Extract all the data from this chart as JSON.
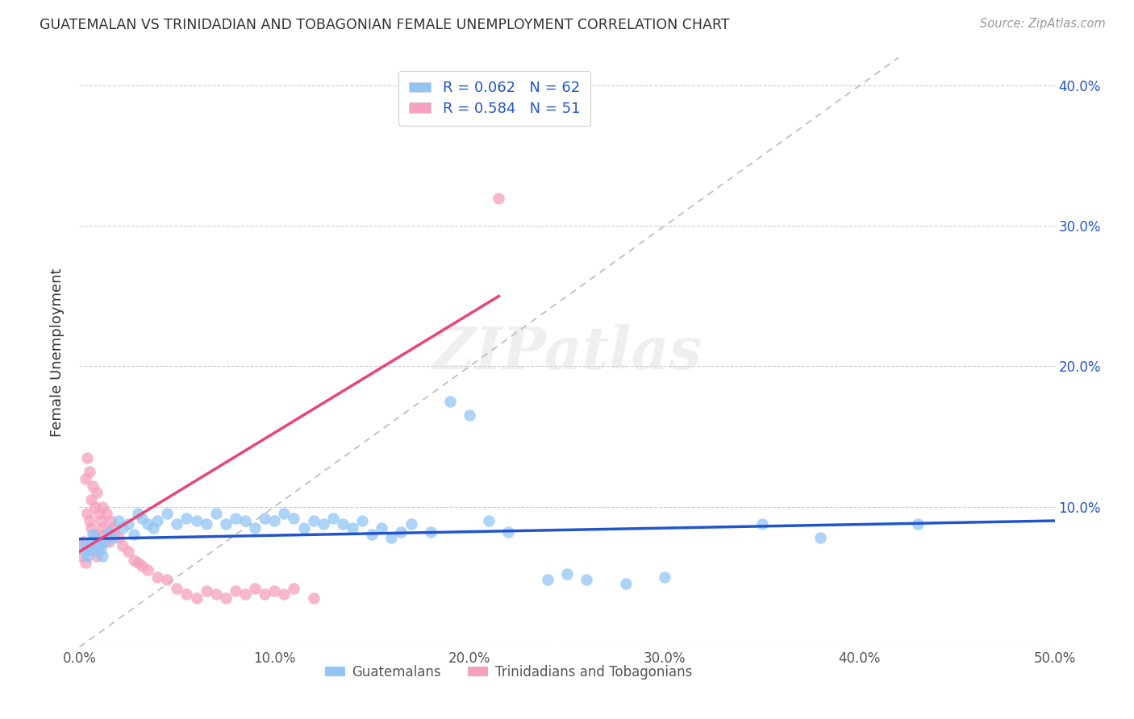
{
  "title": "GUATEMALAN VS TRINIDADIAN AND TOBAGONIAN FEMALE UNEMPLOYMENT CORRELATION CHART",
  "source": "Source: ZipAtlas.com",
  "ylabel": "Female Unemployment",
  "xlim": [
    0.0,
    0.5
  ],
  "ylim": [
    0.0,
    0.42
  ],
  "xticks": [
    0.0,
    0.1,
    0.2,
    0.3,
    0.4,
    0.5
  ],
  "yticks": [
    0.0,
    0.1,
    0.2,
    0.3,
    0.4
  ],
  "xtick_labels": [
    "0.0%",
    "10.0%",
    "20.0%",
    "30.0%",
    "40.0%",
    "50.0%"
  ],
  "ytick_labels_right": [
    "",
    "10.0%",
    "20.0%",
    "30.0%",
    "40.0%"
  ],
  "legend_guatemalans": "Guatemalans",
  "legend_trinidadians": "Trinidadians and Tobagonians",
  "r_guatemalan": "R = 0.062",
  "n_guatemalan": "N = 62",
  "r_trinidadian": "R = 0.584",
  "n_trinidadian": "N = 51",
  "blue_color": "#92C5F5",
  "pink_color": "#F5A0BE",
  "blue_line_color": "#2255CC",
  "pink_line_color": "#E8457A",
  "watermark": "ZIPatlas",
  "guatemalan_x": [
    0.002,
    0.003,
    0.004,
    0.005,
    0.006,
    0.007,
    0.008,
    0.009,
    0.01,
    0.011,
    0.012,
    0.013,
    0.015,
    0.017,
    0.02,
    0.022,
    0.025,
    0.028,
    0.03,
    0.032,
    0.035,
    0.038,
    0.04,
    0.045,
    0.05,
    0.055,
    0.06,
    0.065,
    0.07,
    0.075,
    0.08,
    0.085,
    0.09,
    0.095,
    0.1,
    0.105,
    0.11,
    0.115,
    0.12,
    0.125,
    0.13,
    0.135,
    0.14,
    0.145,
    0.15,
    0.155,
    0.16,
    0.165,
    0.17,
    0.18,
    0.19,
    0.2,
    0.21,
    0.22,
    0.24,
    0.25,
    0.26,
    0.28,
    0.3,
    0.35,
    0.38,
    0.43
  ],
  "guatemalan_y": [
    0.072,
    0.068,
    0.065,
    0.07,
    0.075,
    0.08,
    0.078,
    0.068,
    0.073,
    0.07,
    0.065,
    0.075,
    0.082,
    0.078,
    0.09,
    0.085,
    0.088,
    0.08,
    0.095,
    0.092,
    0.088,
    0.085,
    0.09,
    0.095,
    0.088,
    0.092,
    0.09,
    0.088,
    0.095,
    0.088,
    0.092,
    0.09,
    0.085,
    0.092,
    0.09,
    0.095,
    0.092,
    0.085,
    0.09,
    0.088,
    0.092,
    0.088,
    0.085,
    0.09,
    0.08,
    0.085,
    0.078,
    0.082,
    0.088,
    0.082,
    0.175,
    0.165,
    0.09,
    0.082,
    0.048,
    0.052,
    0.048,
    0.045,
    0.05,
    0.088,
    0.078,
    0.088
  ],
  "trinidadian_x": [
    0.001,
    0.002,
    0.003,
    0.003,
    0.004,
    0.004,
    0.005,
    0.005,
    0.006,
    0.006,
    0.007,
    0.007,
    0.008,
    0.008,
    0.009,
    0.009,
    0.01,
    0.01,
    0.011,
    0.012,
    0.012,
    0.013,
    0.014,
    0.015,
    0.016,
    0.017,
    0.018,
    0.02,
    0.022,
    0.025,
    0.028,
    0.03,
    0.032,
    0.035,
    0.04,
    0.045,
    0.05,
    0.055,
    0.06,
    0.065,
    0.07,
    0.075,
    0.08,
    0.085,
    0.09,
    0.095,
    0.1,
    0.105,
    0.11,
    0.12,
    0.215
  ],
  "trinidadian_y": [
    0.065,
    0.075,
    0.06,
    0.12,
    0.095,
    0.135,
    0.09,
    0.125,
    0.085,
    0.105,
    0.07,
    0.115,
    0.08,
    0.1,
    0.065,
    0.11,
    0.095,
    0.075,
    0.09,
    0.085,
    0.1,
    0.08,
    0.095,
    0.075,
    0.09,
    0.085,
    0.08,
    0.078,
    0.072,
    0.068,
    0.062,
    0.06,
    0.058,
    0.055,
    0.05,
    0.048,
    0.042,
    0.038,
    0.035,
    0.04,
    0.038,
    0.035,
    0.04,
    0.038,
    0.042,
    0.038,
    0.04,
    0.038,
    0.042,
    0.035,
    0.32
  ],
  "blue_trend_x0": 0.0,
  "blue_trend_x1": 0.5,
  "blue_trend_y0": 0.077,
  "blue_trend_y1": 0.09,
  "pink_trend_x0": 0.0,
  "pink_trend_x1": 0.215,
  "pink_trend_y0": 0.068,
  "pink_trend_y1": 0.25
}
